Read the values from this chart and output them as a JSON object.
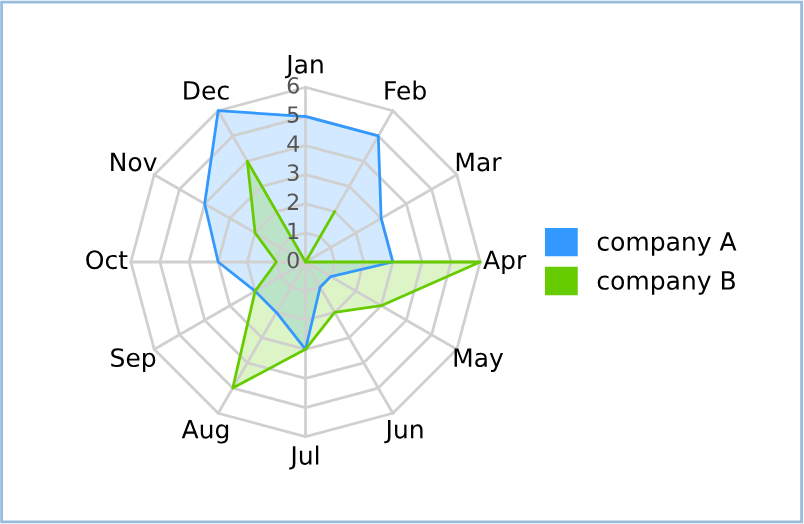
{
  "chart_data": {
    "type": "radar",
    "categories": [
      "Jan",
      "Feb",
      "Mar",
      "Apr",
      "May",
      "Jun",
      "Jul",
      "Aug",
      "Sep",
      "Oct",
      "Nov",
      "Dec"
    ],
    "series": [
      {
        "name": "company A",
        "color": "#3399ff",
        "values": [
          5,
          5,
          3,
          3,
          1,
          1,
          3,
          2,
          2,
          3,
          4,
          6
        ]
      },
      {
        "name": "company B",
        "color": "#66cc00",
        "values": [
          0,
          2,
          0,
          6,
          3,
          2,
          3,
          5,
          2,
          1,
          2,
          4
        ]
      }
    ],
    "ylim": [
      0,
      6
    ],
    "yticks": [
      0,
      1,
      2,
      3,
      4,
      5,
      6
    ],
    "grid": true,
    "legend": "right"
  }
}
